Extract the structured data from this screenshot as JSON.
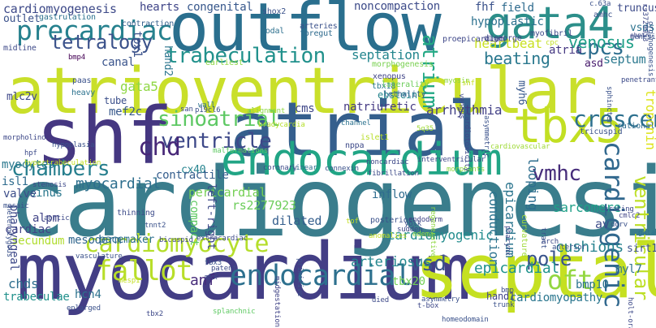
{
  "words": [
    {
      "text": "cardiogenesis",
      "color": "#3a7d8c"
    },
    {
      "text": "atrioventricular",
      "color": "#c9df2a"
    },
    {
      "text": "myocardium",
      "color": "#433e85"
    },
    {
      "text": "outflow",
      "color": "#2a6f8e"
    },
    {
      "text": "atrial",
      "color": "#355f8d"
    },
    {
      "text": "shf",
      "color": "#453781"
    },
    {
      "text": "septal",
      "color": "#c5e021"
    },
    {
      "text": "gata4",
      "color": "#2c8f8a"
    },
    {
      "text": "endocardium",
      "color": "#21a585"
    },
    {
      "text": "tbx5",
      "color": "#c2df23"
    },
    {
      "text": "precardiac",
      "color": "#26818e"
    },
    {
      "text": "tetralogy",
      "color": "#3b528b"
    },
    {
      "text": "chambers",
      "color": "#277f8e"
    },
    {
      "text": "ventricle",
      "color": "#3e4989"
    },
    {
      "text": "cardiomyocyte",
      "color": "#b5de2b"
    },
    {
      "text": "cardiogenic",
      "color": "#31688e"
    },
    {
      "text": "endocardial",
      "color": "#2d708e"
    },
    {
      "text": "fallot",
      "color": "#b8de29"
    },
    {
      "text": "crescent",
      "color": "#2d708e"
    },
    {
      "text": "sinoatrial",
      "color": "#5dc863"
    },
    {
      "text": "trabeculation",
      "color": "#21918c"
    },
    {
      "text": "chd",
      "color": "#482878"
    },
    {
      "text": "vmhc",
      "color": "#472d7b"
    },
    {
      "text": "cpcs",
      "color": "#2e6e8e"
    },
    {
      "text": "venosus",
      "color": "#1fa088"
    },
    {
      "text": "ventricular",
      "color": "#bddf26"
    },
    {
      "text": "oft",
      "color": "#93d741"
    },
    {
      "text": "vsd",
      "color": "#3b528b"
    },
    {
      "text": "atrium",
      "color": "#22a884"
    },
    {
      "text": "beating",
      "color": "#2a788e"
    },
    {
      "text": "cardiomyogenesis",
      "color": "#3e4a89"
    },
    {
      "text": "hearts",
      "color": "#404588"
    },
    {
      "text": "congenital",
      "color": "#38588c"
    },
    {
      "text": "septation",
      "color": "#24868e"
    },
    {
      "text": "cardiomyogenic",
      "color": "#228c8d"
    },
    {
      "text": "arrhythmia",
      "color": "#424086"
    },
    {
      "text": "natriuretic",
      "color": "#443983"
    },
    {
      "text": "cms",
      "color": "#3f4788"
    },
    {
      "text": "sinus",
      "color": "#2a788e"
    },
    {
      "text": "myocardial",
      "color": "#2e6f8e"
    },
    {
      "text": "pericardial",
      "color": "#75d054"
    },
    {
      "text": "rs2277923",
      "color": "#6ccd5a"
    },
    {
      "text": "cx40",
      "color": "#25838e"
    },
    {
      "text": "anf",
      "color": "#472c7a"
    },
    {
      "text": "pole",
      "color": "#3a548c"
    },
    {
      "text": "epicardial",
      "color": "#20938c"
    },
    {
      "text": "cushions",
      "color": "#26828e"
    },
    {
      "text": "sarcomere",
      "color": "#1fa088"
    },
    {
      "text": "conduction",
      "color": "#2c738e"
    },
    {
      "text": "epicardium",
      "color": "#2b758e"
    },
    {
      "text": "looping",
      "color": "#2e6e8e"
    },
    {
      "text": "heartbeat",
      "color": "#c8e020"
    },
    {
      "text": "fhf",
      "color": "#3b528b"
    },
    {
      "text": "field",
      "color": "#2f6b8e"
    },
    {
      "text": "hypoplastic",
      "color": "#2c718e"
    },
    {
      "text": "atria",
      "color": "#453882"
    },
    {
      "text": "septum",
      "color": "#2a788e"
    },
    {
      "text": "asd",
      "color": "#481b6d"
    },
    {
      "text": "myh6",
      "color": "#38588c"
    },
    {
      "text": "troponin",
      "color": "#dde318"
    },
    {
      "text": "av",
      "color": "#3e4c8a"
    },
    {
      "text": "sirt1",
      "color": "#3b518b"
    },
    {
      "text": "bmp10",
      "color": "#2b748e"
    },
    {
      "text": "myl7",
      "color": "#2c728e"
    },
    {
      "text": "cardiomyopathy",
      "color": "#2a768e"
    },
    {
      "text": "hcn4",
      "color": "#2c728e"
    },
    {
      "text": "tbx20",
      "color": "#73d056"
    },
    {
      "text": "chds",
      "color": "#2e6e8e"
    },
    {
      "text": "trabeculae",
      "color": "#21918c"
    },
    {
      "text": "secundum",
      "color": "#b0dd2f"
    },
    {
      "text": "mesoderm",
      "color": "#31668e"
    },
    {
      "text": "pacemaker",
      "color": "#2d708e"
    },
    {
      "text": "cardiac",
      "color": "#414487"
    },
    {
      "text": "pharyngeal",
      "color": "#3e4989"
    },
    {
      "text": "alpm",
      "color": "#414487"
    },
    {
      "text": "arteriosus",
      "color": "#24878e"
    },
    {
      "text": "dilated",
      "color": "#355f8d"
    },
    {
      "text": "compact",
      "color": "#5ec962"
    },
    {
      "text": "left-right",
      "color": "#3e4a89"
    },
    {
      "text": "contractile",
      "color": "#355e8d"
    },
    {
      "text": "valve",
      "color": "#3d4e8a"
    },
    {
      "text": "isl1",
      "color": "#2f6c8e"
    },
    {
      "text": "myocytes",
      "color": "#2a788e"
    },
    {
      "text": "mef2c",
      "color": "#38598c"
    },
    {
      "text": "gata5",
      "color": "#8fd744"
    },
    {
      "text": "tube",
      "color": "#3c508b"
    },
    {
      "text": "canal",
      "color": "#3a548c"
    },
    {
      "text": "inflow",
      "color": "#2f6c8e"
    },
    {
      "text": "vsds",
      "color": "#2c728e"
    },
    {
      "text": "truncus",
      "color": "#3e4c8a"
    },
    {
      "text": "outlet",
      "color": "#3b528b"
    },
    {
      "text": "mlc2v",
      "color": "#3f4889"
    },
    {
      "text": "tbx1",
      "color": "#3b528b"
    },
    {
      "text": "hand2",
      "color": "#2b758e"
    },
    {
      "text": "noncompaction",
      "color": "#3e4c8a"
    },
    {
      "text": "hand1",
      "color": "#414487"
    },
    {
      "text": "ebstein",
      "color": "#25858e"
    },
    {
      "text": "gastrulation",
      "color": "#2c728e"
    },
    {
      "text": "midline",
      "color": "#3e4a89"
    },
    {
      "text": "contraction",
      "color": "#35608d"
    },
    {
      "text": "shox2",
      "color": "#3b528b"
    },
    {
      "text": "nodal",
      "color": "#2d708e"
    },
    {
      "text": "arteries",
      "color": "#3b528b"
    },
    {
      "text": "foregut",
      "color": "#2f6b8e"
    },
    {
      "text": "digeorge",
      "color": "#414487"
    },
    {
      "text": "proepicardium",
      "color": "#3f4889"
    },
    {
      "text": "myofibril",
      "color": "#3e4989"
    },
    {
      "text": "amhc",
      "color": "#3b528b"
    },
    {
      "text": "earliest",
      "color": "#8fd744"
    },
    {
      "text": "bmp4",
      "color": "#440154"
    },
    {
      "text": "paas",
      "color": "#3b528b"
    },
    {
      "text": "heavy",
      "color": "#2c728e"
    },
    {
      "text": "xenopus",
      "color": "#414487"
    },
    {
      "text": "tbx18",
      "color": "#2a788e"
    },
    {
      "text": "laterality",
      "color": "#6ccd5a"
    },
    {
      "text": "lethality",
      "color": "#35608d"
    },
    {
      "text": "morphogenesis",
      "color": "#7ad151"
    },
    {
      "text": "wall",
      "color": "#2d708e"
    },
    {
      "text": "san",
      "color": "#3e4c8a"
    },
    {
      "text": "p19cl6",
      "color": "#3b528b"
    },
    {
      "text": "alignment",
      "color": "#8fd744"
    },
    {
      "text": "bradycardia",
      "color": "#b5de2b"
    },
    {
      "text": "channel",
      "color": "#2c728e"
    },
    {
      "text": "5q35",
      "color": "#a0da39"
    },
    {
      "text": "tricuspid",
      "color": "#3b528b"
    },
    {
      "text": "rationale",
      "color": "#2f6c8e"
    },
    {
      "text": "morpholino",
      "color": "#3e4989"
    },
    {
      "text": "hypoplasia",
      "color": "#3b528b"
    },
    {
      "text": "nppa",
      "color": "#3e4a89"
    },
    {
      "text": "islet1",
      "color": "#b8de29"
    },
    {
      "text": "gata6",
      "color": "#2c728e"
    },
    {
      "text": "malformations",
      "color": "#5ec962"
    },
    {
      "text": "coronary",
      "color": "#3e4a89"
    },
    {
      "text": "linear",
      "color": "#2f6c8e"
    },
    {
      "text": "connexin",
      "color": "#3b528b"
    },
    {
      "text": "fibrillation",
      "color": "#3e4c8a"
    },
    {
      "text": "noncardiac",
      "color": "#3e4989"
    },
    {
      "text": "interventricular",
      "color": "#3e4a89"
    },
    {
      "text": "morphants",
      "color": "#8fd744"
    },
    {
      "text": "hypertrabeculation",
      "color": "#c2df23"
    },
    {
      "text": "heterozygous",
      "color": "#3b528b"
    },
    {
      "text": "mosaic",
      "color": "#3b528b"
    },
    {
      "text": "hpf",
      "color": "#3e4c8a"
    },
    {
      "text": "stenosis",
      "color": "#3e4989"
    },
    {
      "text": "thinning",
      "color": "#3e4c8a"
    },
    {
      "text": "tnnt2",
      "color": "#3b528b"
    },
    {
      "text": "aortic",
      "color": "#3e4a89"
    },
    {
      "text": "tof",
      "color": "#c2df23"
    },
    {
      "text": "posterior",
      "color": "#3b528b"
    },
    {
      "text": "endoderm",
      "color": "#414487"
    },
    {
      "text": "regenerative",
      "color": "#8fd744"
    },
    {
      "text": "curvature",
      "color": "#a0da39"
    },
    {
      "text": "tracing",
      "color": "#3e4a89"
    },
    {
      "text": "cmlc2",
      "color": "#414487"
    },
    {
      "text": "dorv",
      "color": "#3b528b"
    },
    {
      "text": "arch",
      "color": "#3e4a89"
    },
    {
      "text": "anterior",
      "color": "#3b528b"
    },
    {
      "text": "bicuspid",
      "color": "#3e4989"
    },
    {
      "text": "extracardiac",
      "color": "#3e4a89"
    },
    {
      "text": "vasculature",
      "color": "#3b528b"
    },
    {
      "text": "patent",
      "color": "#3e4c8a"
    },
    {
      "text": "mkx",
      "color": "#3e4a89"
    },
    {
      "text": "enlarged",
      "color": "#3b528b"
    },
    {
      "text": "splanchnic",
      "color": "#5ec962"
    },
    {
      "text": "midgestation",
      "color": "#414487"
    },
    {
      "text": "yolk",
      "color": "#3b528b"
    },
    {
      "text": "sudden",
      "color": "#3e4989"
    },
    {
      "text": "edema",
      "color": "#8fd744"
    },
    {
      "text": "anomalies",
      "color": "#c2df23"
    },
    {
      "text": "primitive",
      "color": "#3b528b"
    },
    {
      "text": "died",
      "color": "#3e4a89"
    },
    {
      "text": "asymmetry",
      "color": "#3b528b"
    },
    {
      "text": "t-box",
      "color": "#3e4989"
    },
    {
      "text": "trunk",
      "color": "#3b528b"
    },
    {
      "text": "bmp",
      "color": "#3e4c8a"
    },
    {
      "text": "homeodomain",
      "color": "#3b528b"
    },
    {
      "text": "holt-oram",
      "color": "#3e4a89"
    },
    {
      "text": "c.63a",
      "color": "#3b528b"
    },
    {
      "text": "rs3729953",
      "color": "#3e4989"
    },
    {
      "text": "mesp1",
      "color": "#c2df23"
    },
    {
      "text": "genesis",
      "color": "#3b528b"
    },
    {
      "text": "cardiotoxicity",
      "color": "#3e4a89"
    },
    {
      "text": "asymmetric",
      "color": "#3b528b"
    },
    {
      "text": "cardiovascular",
      "color": "#a0da39"
    },
    {
      "text": "pharynx",
      "color": "#3e4989"
    },
    {
      "text": "sphincter",
      "color": "#3b528b"
    },
    {
      "text": "penetrant",
      "color": "#3e4c8a"
    },
    {
      "text": "organogenesis",
      "color": "#3b528b"
    },
    {
      "text": "myosin",
      "color": "#8fd744"
    },
    {
      "text": "venous",
      "color": "#3e4a89"
    },
    {
      "text": "shf",
      "color": "#c2df23"
    },
    {
      "text": "tract",
      "color": "#3b528b"
    },
    {
      "text": "cpc",
      "color": "#c2df23"
    },
    {
      "text": "tbx2",
      "color": "#3e4989"
    },
    {
      "text": "tbx3",
      "color": "#3b528b"
    },
    {
      "text": "ebpt",
      "color": "#3e4a89"
    }
  ]
}
